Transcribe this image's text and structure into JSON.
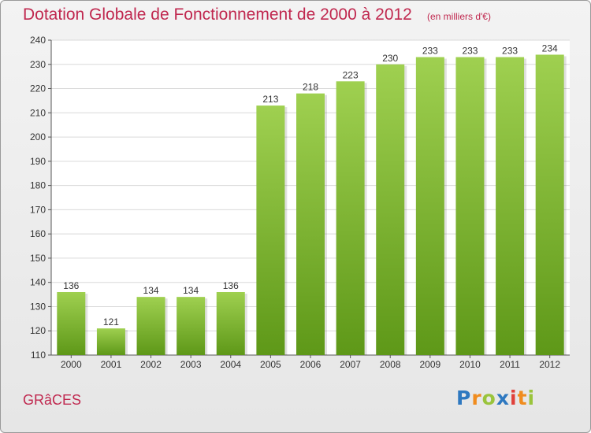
{
  "header": {
    "title": "Dotation Globale de Fonctionnement de 2000 à 2012",
    "unit": "(en milliers d'€)"
  },
  "footer": {
    "commune": "GRâCES",
    "logo_letters": [
      "P",
      "r",
      "o",
      "x",
      "i",
      "t",
      "i"
    ],
    "logo_colors": [
      "#2e78c0",
      "#f08c1e",
      "#9ac43c",
      "#2e78c0",
      "#e0403a",
      "#f08c1e",
      "#9ac43c"
    ]
  },
  "colors": {
    "title": "#c0284f",
    "bar_top": "#9fd050",
    "bar_bottom": "#5e9818"
  },
  "chart_data": {
    "type": "bar",
    "title": "Dotation Globale de Fonctionnement de 2000 à 2012",
    "subtitle": "(en milliers d'€)",
    "categories": [
      "2000",
      "2001",
      "2002",
      "2003",
      "2004",
      "2005",
      "2006",
      "2007",
      "2008",
      "2009",
      "2010",
      "2011",
      "2012"
    ],
    "values": [
      136,
      121,
      134,
      134,
      136,
      213,
      218,
      223,
      230,
      233,
      233,
      233,
      234
    ],
    "ylim": [
      110,
      240
    ],
    "yticks": [
      110,
      120,
      130,
      140,
      150,
      160,
      170,
      180,
      190,
      200,
      210,
      220,
      230,
      240
    ],
    "grid": true,
    "data_labels": true
  }
}
